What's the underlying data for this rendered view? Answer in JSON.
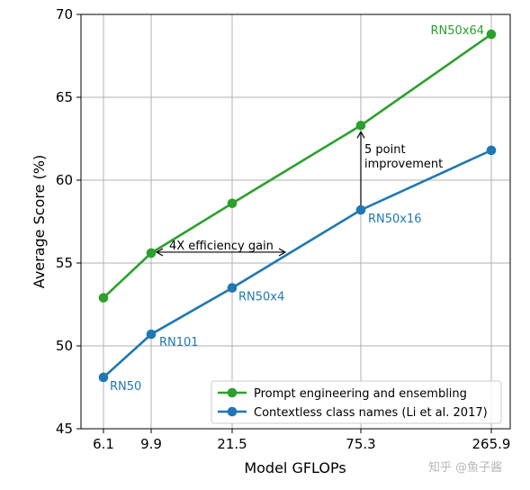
{
  "chart_data": {
    "type": "line",
    "xlabel": "Model GFLOPs",
    "ylabel": "Average Score (%)",
    "categories": [
      "6.1",
      "9.9",
      "21.5",
      "75.3",
      "265.9"
    ],
    "ylim": [
      45,
      70
    ],
    "yticks": [
      "45",
      "50",
      "55",
      "60",
      "65",
      "70"
    ],
    "grid": true,
    "legend_position": "bottom-right",
    "series": [
      {
        "name": "Prompt engineering and ensembling",
        "color": "#2ca02c",
        "values": [
          52.9,
          55.6,
          58.6,
          63.3,
          68.8
        ],
        "point_labels": [
          "",
          "",
          "",
          "",
          "RN50x64"
        ]
      },
      {
        "name": "Contextless class names (Li et al. 2017)",
        "color": "#1f77b4",
        "values": [
          48.1,
          50.7,
          53.5,
          58.2,
          61.8
        ],
        "point_labels": [
          "RN50",
          "RN101",
          "RN50x4",
          "RN50x16",
          ""
        ]
      }
    ],
    "annotations": {
      "efficiency": "4X efficiency gain",
      "improvement_line1": "5 point",
      "improvement_line2": "improvement"
    }
  },
  "watermark": "知乎 @鱼子酱"
}
